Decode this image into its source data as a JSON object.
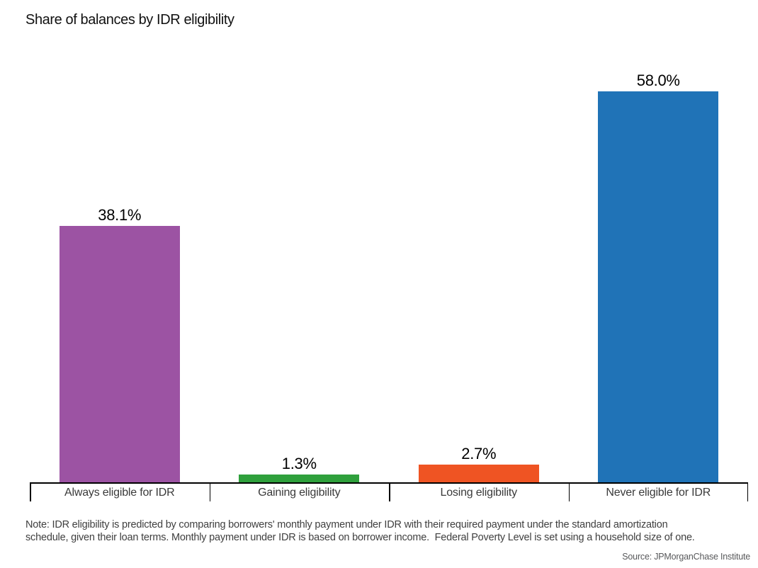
{
  "page": {
    "title": "Share of balances by IDR eligibility"
  },
  "chart_data": {
    "type": "bar",
    "title": "Share of balances by IDR eligibility",
    "categories": [
      "Always eligible for IDR",
      "Gaining eligibility",
      "Losing eligibility",
      "Never eligible for IDR"
    ],
    "values": [
      38.1,
      1.3,
      2.7,
      58.0
    ],
    "value_labels": [
      "38.1%",
      "1.3%",
      "2.7%",
      "58.0%"
    ],
    "bar_colors": [
      "#9c53a3",
      "#2fa03c",
      "#ef5423",
      "#2073b7"
    ],
    "xlabel": "",
    "ylabel": "",
    "ylim": [
      0,
      60
    ],
    "grid": false,
    "legend": false,
    "y_axis_visible": false,
    "axis_color": "#000000",
    "value_label_color": "#000000",
    "category_label_color": "#3a3a3a"
  },
  "note": {
    "line1": "Note: IDR eligibility is predicted by comparing borrowers' monthly payment under IDR with their required payment under the standard amortization",
    "line2": "schedule, given their loan terms. Monthly payment under IDR is based on borrower income.  Federal Poverty Level is set using a household size of one."
  },
  "source": "Source: JPMorganChase Institute"
}
